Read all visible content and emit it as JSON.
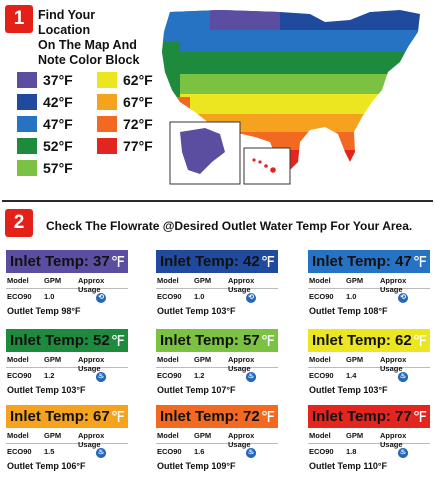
{
  "step1": {
    "number": "1",
    "title_lines": [
      "Find Your Location",
      "On The Map And",
      "Note Color Block"
    ]
  },
  "legend": [
    {
      "label": "37°F",
      "color": "#5b4ea0"
    },
    {
      "label": "42°F",
      "color": "#1f4a9e"
    },
    {
      "label": "47°F",
      "color": "#2673c3"
    },
    {
      "label": "52°F",
      "color": "#1e8a3d"
    },
    {
      "label": "57°F",
      "color": "#7cc242"
    },
    {
      "label": "62°F",
      "color": "#ece620"
    },
    {
      "label": "67°F",
      "color": "#f5a31f"
    },
    {
      "label": "72°F",
      "color": "#f26a21"
    },
    {
      "label": "77°F",
      "color": "#e3251f"
    }
  ],
  "step2": {
    "number": "2",
    "title": "Check The Flowrate @Desired Outlet Water Temp For Your Area."
  },
  "card_labels": {
    "model": "Model",
    "gpm": "GPM",
    "usage": "Approx Usage",
    "outlet_prefix": "Outlet Temp"
  },
  "cards": [
    {
      "header": "Inlet Temp: 37",
      "unit": "℉",
      "color": "#5b4ea0",
      "model": "ECO90",
      "gpm": "1.0",
      "outlet": "98°F",
      "icons": 1
    },
    {
      "header": "Inlet Temp: 42",
      "unit": "℉",
      "color": "#1f4a9e",
      "model": "ECO90",
      "gpm": "1.0",
      "outlet": "103°F",
      "icons": 1
    },
    {
      "header": "Inlet Temp: 47",
      "unit": "℉",
      "color": "#2673c3",
      "model": "ECO90",
      "gpm": "1.0",
      "outlet": "108°F",
      "icons": 1
    },
    {
      "header": "Inlet Temp: 52",
      "unit": "℉",
      "color": "#1e8a3d",
      "model": "ECO90",
      "gpm": "1.2",
      "outlet": "103°F",
      "icons": 2
    },
    {
      "header": "Inlet Temp: 57",
      "unit": "℉",
      "color": "#7cc242",
      "model": "ECO90",
      "gpm": "1.2",
      "outlet": "107°F",
      "icons": 2
    },
    {
      "header": "Inlet Temp: 62",
      "unit": "℉",
      "color": "#ece620",
      "model": "ECO90",
      "gpm": "1.4",
      "outlet": "103°F",
      "icons": 2
    },
    {
      "header": "Inlet Temp: 67",
      "unit": "℉",
      "color": "#f5a31f",
      "model": "ECO90",
      "gpm": "1.5",
      "outlet": "106°F",
      "icons": 2
    },
    {
      "header": "Inlet Temp: 72",
      "unit": "℉",
      "color": "#f26a21",
      "model": "ECO90",
      "gpm": "1.6",
      "outlet": "109°F",
      "icons": 2
    },
    {
      "header": "Inlet Temp: 77",
      "unit": "℉",
      "color": "#e3251f",
      "model": "ECO90",
      "gpm": "1.8",
      "outlet": "110°F",
      "icons": 2
    }
  ]
}
